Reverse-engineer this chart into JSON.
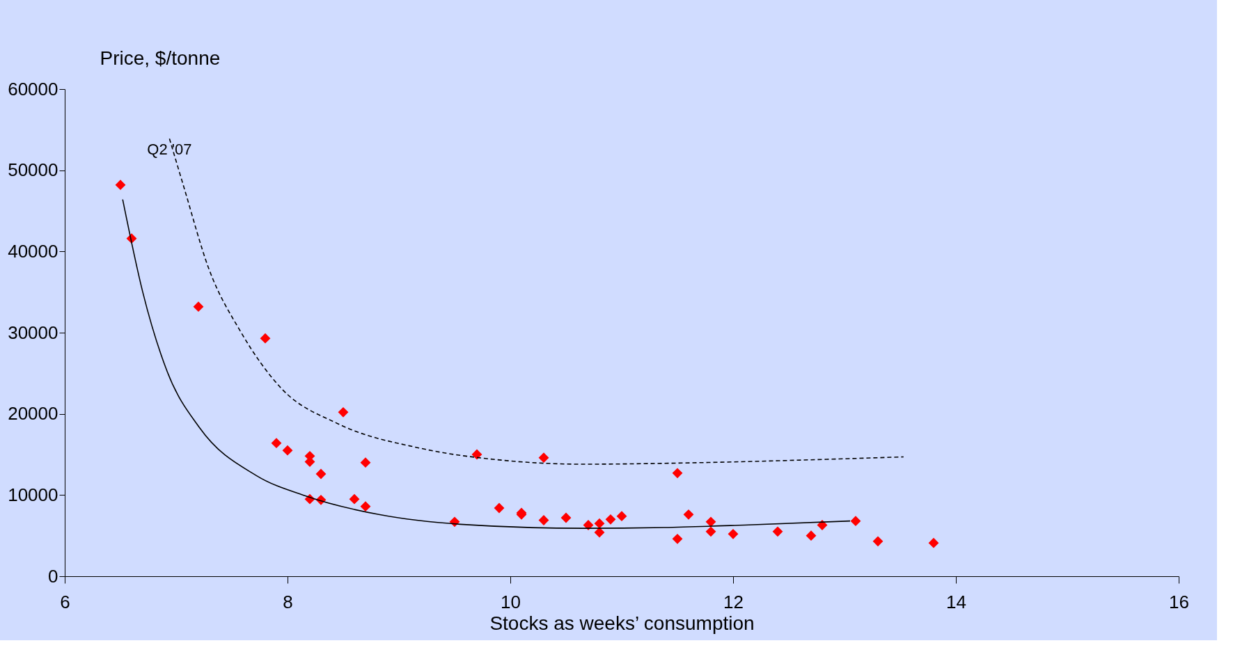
{
  "chart_data": {
    "type": "scatter",
    "xlabel": "Stocks as weeks’ consumption",
    "ylabel": "Price, $/tonne",
    "xlim": [
      6,
      16
    ],
    "xticks": [
      6,
      8,
      10,
      12,
      14,
      16
    ],
    "ylim": [
      0,
      60000
    ],
    "yticks": [
      0,
      10000,
      20000,
      30000,
      40000,
      50000,
      60000
    ],
    "grid": false,
    "annotations": [
      {
        "text": "Q2 '07",
        "x": 6.94,
        "y": 53900
      }
    ],
    "series": [
      {
        "color": "#ff0000",
        "marker": "diamond",
        "x": [
          6.5,
          6.6,
          7.2,
          7.8,
          8.5,
          7.9,
          8.0,
          8.2,
          8.2,
          8.3,
          8.7,
          8.2,
          8.3,
          8.6,
          8.7,
          9.5,
          9.7,
          9.9,
          10.1,
          10.1,
          10.3,
          10.3,
          10.5,
          10.7,
          10.8,
          10.8,
          10.9,
          11.0,
          11.5,
          11.5,
          11.6,
          11.8,
          11.8,
          12.0,
          12.4,
          12.7,
          12.8,
          13.1,
          13.3,
          13.8
        ],
        "values": [
          48200,
          41600,
          33200,
          29300,
          20200,
          16400,
          15500,
          14800,
          14100,
          12600,
          14000,
          9500,
          9400,
          9500,
          8600,
          6700,
          15000,
          8400,
          7800,
          7600,
          14600,
          6900,
          7200,
          6300,
          6500,
          5400,
          7000,
          7400,
          12700,
          4600,
          7600,
          6700,
          5500,
          5200,
          5500,
          5000,
          6300,
          6800,
          4300,
          4100
        ]
      },
      {
        "type": "line",
        "color": "#000000",
        "line_style": "solid",
        "x": [
          6.52,
          6.7,
          6.92,
          7.21,
          7.72,
          8.16,
          8.82,
          9.55,
          10.65,
          11.38,
          12.1,
          13.05
        ],
        "values": [
          46400,
          35000,
          25200,
          18300,
          12400,
          9900,
          7600,
          6400,
          5900,
          6000,
          6300,
          6800
        ]
      },
      {
        "type": "line",
        "color": "#000000",
        "line_style": "dashed",
        "x": [
          6.94,
          7.07,
          7.29,
          7.58,
          7.94,
          8.45,
          9.18,
          9.92,
          10.65,
          11.74,
          12.84,
          13.53
        ],
        "values": [
          53900,
          47900,
          38000,
          30100,
          23200,
          18800,
          15800,
          14300,
          13800,
          14000,
          14400,
          14700
        ]
      }
    ]
  }
}
